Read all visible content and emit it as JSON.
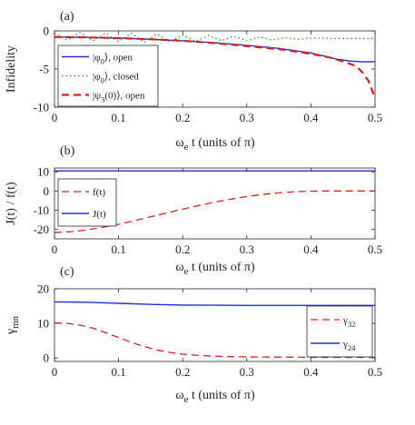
{
  "chart_data": [
    {
      "panel": "(a)",
      "type": "line",
      "ylabel": "Infidelity",
      "xlabel": "ω_e t (units of π)",
      "xlim": [
        0,
        0.5
      ],
      "ylim": [
        -10,
        0
      ],
      "xticks": [
        "0",
        "0.1",
        "0.2",
        "0.3",
        "0.4",
        "0.5"
      ],
      "yticks": [
        "0",
        "-5",
        "-10"
      ],
      "legend_position": "left",
      "series": [
        {
          "name": "|φ0⟩, open",
          "color": "#1f2fd6",
          "style": "solid",
          "x": [
            0,
            0.05,
            0.1,
            0.15,
            0.2,
            0.25,
            0.3,
            0.35,
            0.4,
            0.42,
            0.44,
            0.46,
            0.48,
            0.5
          ],
          "y": [
            -0.8,
            -0.85,
            -0.95,
            -1.1,
            -1.3,
            -1.55,
            -1.9,
            -2.3,
            -2.9,
            -3.3,
            -3.7,
            -3.95,
            -4.05,
            -4.05
          ]
        },
        {
          "name": "|φ0⟩, closed",
          "color": "#1a9a1a",
          "style": "dotted",
          "x": [
            0,
            0.02,
            0.04,
            0.06,
            0.08,
            0.1,
            0.12,
            0.14,
            0.16,
            0.18,
            0.2,
            0.22,
            0.24,
            0.26,
            0.28,
            0.3,
            0.32,
            0.34,
            0.36,
            0.38,
            0.4,
            0.45,
            0.5
          ],
          "y": [
            -0.3,
            -1.2,
            -0.2,
            -1.3,
            -0.3,
            -1.4,
            -0.3,
            -1.5,
            -0.4,
            -1.5,
            -0.5,
            -1.4,
            -0.6,
            -1.3,
            -0.7,
            -1.3,
            -0.8,
            -1.2,
            -0.9,
            -1.1,
            -0.95,
            -1.0,
            -1.0
          ]
        },
        {
          "name": "|ψ3(0)⟩, open",
          "color": "#e01b1b",
          "style": "dashed",
          "x": [
            0,
            0.05,
            0.1,
            0.15,
            0.2,
            0.25,
            0.3,
            0.35,
            0.4,
            0.43,
            0.45,
            0.47,
            0.48,
            0.49,
            0.5
          ],
          "y": [
            -0.8,
            -0.85,
            -0.95,
            -1.1,
            -1.3,
            -1.6,
            -2.0,
            -2.4,
            -3.0,
            -3.5,
            -4.0,
            -4.6,
            -5.4,
            -6.6,
            -8.8
          ]
        }
      ]
    },
    {
      "panel": "(b)",
      "type": "line",
      "ylabel": "J(t) / f(t)",
      "xlabel": "ω_e t (units of π)",
      "xlim": [
        0,
        0.5
      ],
      "ylim": [
        -25,
        12
      ],
      "xticks": [
        "0",
        "0.1",
        "0.2",
        "0.3",
        "0.4",
        "0.5"
      ],
      "yticks": [
        "10",
        "0",
        "-10",
        "-20"
      ],
      "legend_position": "left",
      "series": [
        {
          "name": "f(t)",
          "color": "#e01b1b",
          "style": "dashed",
          "x": [
            0,
            0.025,
            0.05,
            0.075,
            0.1,
            0.125,
            0.15,
            0.175,
            0.2,
            0.225,
            0.25,
            0.275,
            0.3,
            0.325,
            0.35,
            0.375,
            0.4,
            0.425,
            0.45,
            0.475,
            0.5
          ],
          "y": [
            -21.7,
            -21.3,
            -20.4,
            -19.0,
            -17.4,
            -15.5,
            -13.5,
            -11.5,
            -9.5,
            -7.6,
            -5.8,
            -4.3,
            -2.9,
            -1.8,
            -1.0,
            -0.4,
            -0.1,
            0,
            0,
            0,
            0
          ]
        },
        {
          "name": "J(t)",
          "color": "#1f2fd6",
          "style": "solid",
          "x": [
            0,
            0.5
          ],
          "y": [
            10.5,
            10.5
          ]
        }
      ]
    },
    {
      "panel": "(c)",
      "type": "line",
      "ylabel": "γ_mn",
      "xlabel": "ω_e t (units of π)",
      "xlim": [
        0,
        0.5
      ],
      "ylim": [
        -1,
        20
      ],
      "xticks": [
        "0",
        "0.1",
        "0.2",
        "0.3",
        "0.4",
        "0.5"
      ],
      "yticks": [
        "20",
        "10",
        "0"
      ],
      "legend_position": "right",
      "series": [
        {
          "name": "γ32",
          "color": "#e01b1b",
          "style": "dashed",
          "x": [
            0,
            0.02,
            0.04,
            0.06,
            0.08,
            0.1,
            0.12,
            0.14,
            0.16,
            0.18,
            0.2,
            0.22,
            0.25,
            0.3,
            0.35,
            0.4,
            0.5
          ],
          "y": [
            10.1,
            10.0,
            9.5,
            8.6,
            7.3,
            5.9,
            4.5,
            3.3,
            2.3,
            1.6,
            1.1,
            0.8,
            0.5,
            0.3,
            0.25,
            0.2,
            0.2
          ]
        },
        {
          "name": "γ24",
          "color": "#1f2fd6",
          "style": "solid",
          "x": [
            0,
            0.05,
            0.1,
            0.15,
            0.2,
            0.25,
            0.3,
            0.4,
            0.5
          ],
          "y": [
            16.2,
            16.1,
            15.8,
            15.5,
            15.3,
            15.25,
            15.2,
            15.2,
            15.2
          ]
        }
      ]
    }
  ]
}
